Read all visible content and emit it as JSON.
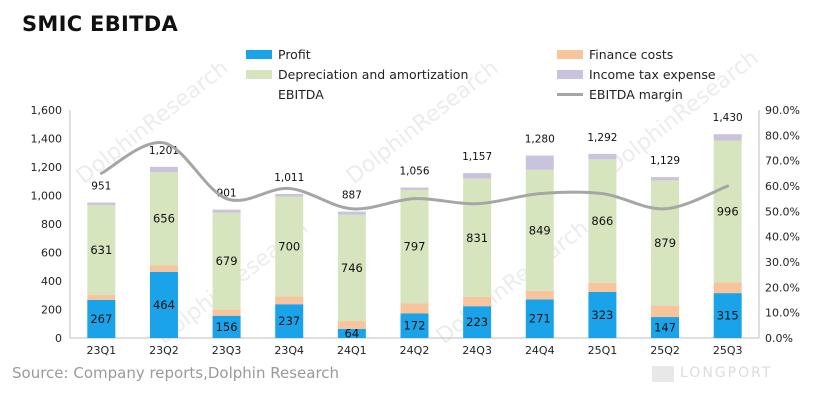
{
  "title": "SMIC EBITDA",
  "source": "Source: Company reports,Dolphin Research",
  "watermark_text": "DolphinResearch",
  "brand_text": "LONGPORT",
  "colors": {
    "profit": "#1aa3e8",
    "dep": "#d6e5bd",
    "finance": "#f7c49b",
    "tax": "#c9c3dd",
    "margin": "#a6a6a6"
  },
  "legend": {
    "profit": "Profit",
    "finance": "Finance costs",
    "dep": "Depreciation and amortization",
    "tax": "Income tax expense",
    "ebitda": "EBITDA",
    "margin": "EBITDA margin"
  },
  "chart_data": {
    "type": "bar",
    "stacked": true,
    "categories": [
      "23Q1",
      "23Q2",
      "23Q3",
      "23Q4",
      "24Q1",
      "24Q2",
      "24Q3",
      "24Q4",
      "25Q1",
      "25Q2",
      "25Q3"
    ],
    "series": [
      {
        "name": "Profit",
        "values": [
          267,
          464,
          156,
          237,
          64,
          172,
          223,
          271,
          323,
          147,
          315
        ]
      },
      {
        "name": "Finance costs",
        "values": [
          35,
          45,
          45,
          55,
          55,
          70,
          65,
          60,
          65,
          80,
          75
        ]
      },
      {
        "name": "Depreciation and amortization",
        "values": [
          631,
          656,
          679,
          700,
          746,
          797,
          831,
          849,
          866,
          879,
          996
        ]
      },
      {
        "name": "Income tax expense",
        "values": [
          18,
          36,
          21,
          19,
          22,
          17,
          38,
          100,
          38,
          23,
          44
        ]
      }
    ],
    "ebitda_totals": [
      951,
      1201,
      901,
      1011,
      887,
      1056,
      1157,
      1280,
      1292,
      1129,
      1430
    ],
    "ebitda_margin": [
      65,
      77,
      55,
      59,
      51,
      55,
      53,
      57,
      57,
      51,
      60
    ],
    "y_left": {
      "min": 0,
      "max": 1600,
      "step": 200,
      "ticks": [
        "0",
        "200",
        "400",
        "600",
        "800",
        "1,000",
        "1,200",
        "1,400",
        "1,600"
      ]
    },
    "y_right": {
      "min": 0,
      "max": 90,
      "step": 10,
      "ticks": [
        "0.0%",
        "10.0%",
        "20.0%",
        "30.0%",
        "40.0%",
        "50.0%",
        "60.0%",
        "70.0%",
        "80.0%",
        "90.0%"
      ]
    },
    "legend_position": "top",
    "grid": false
  }
}
